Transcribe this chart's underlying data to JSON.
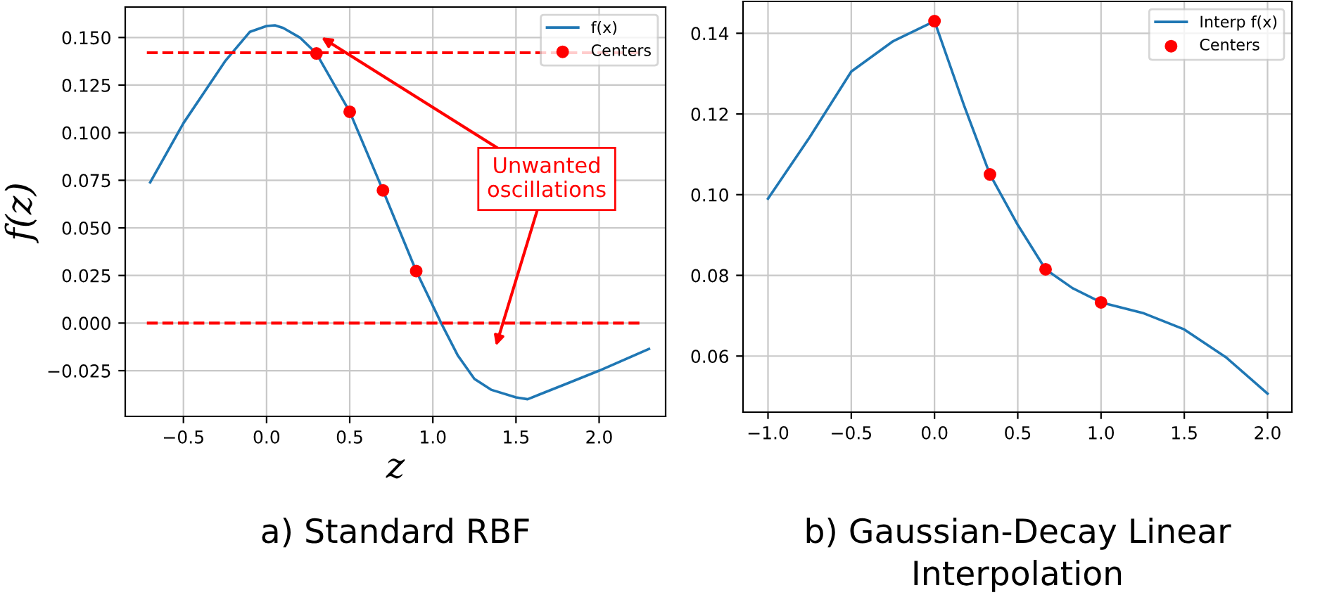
{
  "chart_data": [
    {
      "type": "line",
      "xlabel": "z",
      "ylabel": "f(z)",
      "xlim": [
        -0.85,
        2.4
      ],
      "ylim": [
        -0.049,
        0.166
      ],
      "xticks": [
        {
          "value": -0.5,
          "label": "−0.5"
        },
        {
          "value": 0,
          "label": "0.0"
        },
        {
          "value": 0.5,
          "label": "0.5"
        },
        {
          "value": 1,
          "label": "1.0"
        },
        {
          "value": 1.5,
          "label": "1.5"
        },
        {
          "value": 2,
          "label": "2.0"
        }
      ],
      "yticks": [
        {
          "value": -0.025,
          "label": "−0.025"
        },
        {
          "value": 0,
          "label": "0.000"
        },
        {
          "value": 0.025,
          "label": "0.025"
        },
        {
          "value": 0.05,
          "label": "0.050"
        },
        {
          "value": 0.075,
          "label": "0.075"
        },
        {
          "value": 0.1,
          "label": "0.100"
        },
        {
          "value": 0.125,
          "label": "0.125"
        },
        {
          "value": 0.15,
          "label": "0.150"
        }
      ],
      "grid": true,
      "legend": "top right",
      "series": [
        {
          "name": "f(x)",
          "color": "#1f77b4",
          "marker": "none",
          "x": [
            -0.7,
            -0.5,
            -0.25,
            -0.1,
            0.0,
            0.05,
            0.1,
            0.2,
            0.3,
            0.5,
            0.7,
            0.9,
            1.05,
            1.15,
            1.25,
            1.35,
            1.5,
            1.57,
            1.8,
            2.0,
            2.3
          ],
          "values": [
            0.0739,
            0.105,
            0.1375,
            0.153,
            0.156,
            0.1564,
            0.155,
            0.15,
            0.1416,
            0.111,
            0.0697,
            0.0273,
            0.0,
            -0.017,
            -0.0293,
            -0.035,
            -0.039,
            -0.04,
            -0.032,
            -0.025,
            -0.0136
          ]
        },
        {
          "name": "Centers",
          "type": "scatter",
          "color": "#ff0000",
          "marker": "circle",
          "x": [
            0.3,
            0.5,
            0.7,
            0.9
          ],
          "values": [
            0.1416,
            0.111,
            0.0697,
            0.0273
          ]
        }
      ],
      "ref_lines": [
        {
          "axis": "y",
          "value": 0.142,
          "color": "#ff0000",
          "line_style": "dashed"
        },
        {
          "axis": "y",
          "value": 0,
          "color": "#ff0000",
          "line_style": "dashed"
        }
      ],
      "annotations": [
        "Unwanted\noscillations",
        "a) Standard RBF"
      ]
    },
    {
      "type": "line",
      "xlim": [
        -1.15,
        2.146
      ],
      "ylim": [
        0.0461,
        0.1479
      ],
      "xticks": [
        {
          "value": -1.0,
          "label": "−1.0"
        },
        {
          "value": -0.5,
          "label": "−0.5"
        },
        {
          "value": 0,
          "label": "0.0"
        },
        {
          "value": 0.5,
          "label": "0.5"
        },
        {
          "value": 1,
          "label": "1.0"
        },
        {
          "value": 1.5,
          "label": "1.5"
        },
        {
          "value": 2,
          "label": "2.0"
        }
      ],
      "yticks": [
        {
          "value": 0.06,
          "label": "0.06"
        },
        {
          "value": 0.08,
          "label": "0.08"
        },
        {
          "value": 0.1,
          "label": "0.10"
        },
        {
          "value": 0.12,
          "label": "0.12"
        },
        {
          "value": 0.14,
          "label": "0.14"
        }
      ],
      "grid": true,
      "legend": "top right",
      "series": [
        {
          "name": "Interp f(x)",
          "color": "#1f77b4",
          "marker": "none",
          "x": [
            -1.0,
            -0.75,
            -0.5,
            -0.25,
            0.0,
            0.18,
            0.333,
            0.5,
            0.667,
            0.83,
            1.0,
            1.25,
            1.5,
            1.75,
            2.0
          ],
          "values": [
            0.099,
            0.1142,
            0.1305,
            0.138,
            0.143,
            0.1218,
            0.105,
            0.0925,
            0.0815,
            0.0768,
            0.0733,
            0.0707,
            0.0666,
            0.0597,
            0.0507
          ]
        },
        {
          "name": "Centers",
          "type": "scatter",
          "color": "#ff0000",
          "marker": "circle",
          "x": [
            0.0,
            0.333,
            0.667,
            1.0
          ],
          "values": [
            0.143,
            0.105,
            0.0815,
            0.0733
          ]
        }
      ],
      "annotations": [
        "b) Gaussian-Decay Linear\nInterpolation"
      ]
    }
  ]
}
